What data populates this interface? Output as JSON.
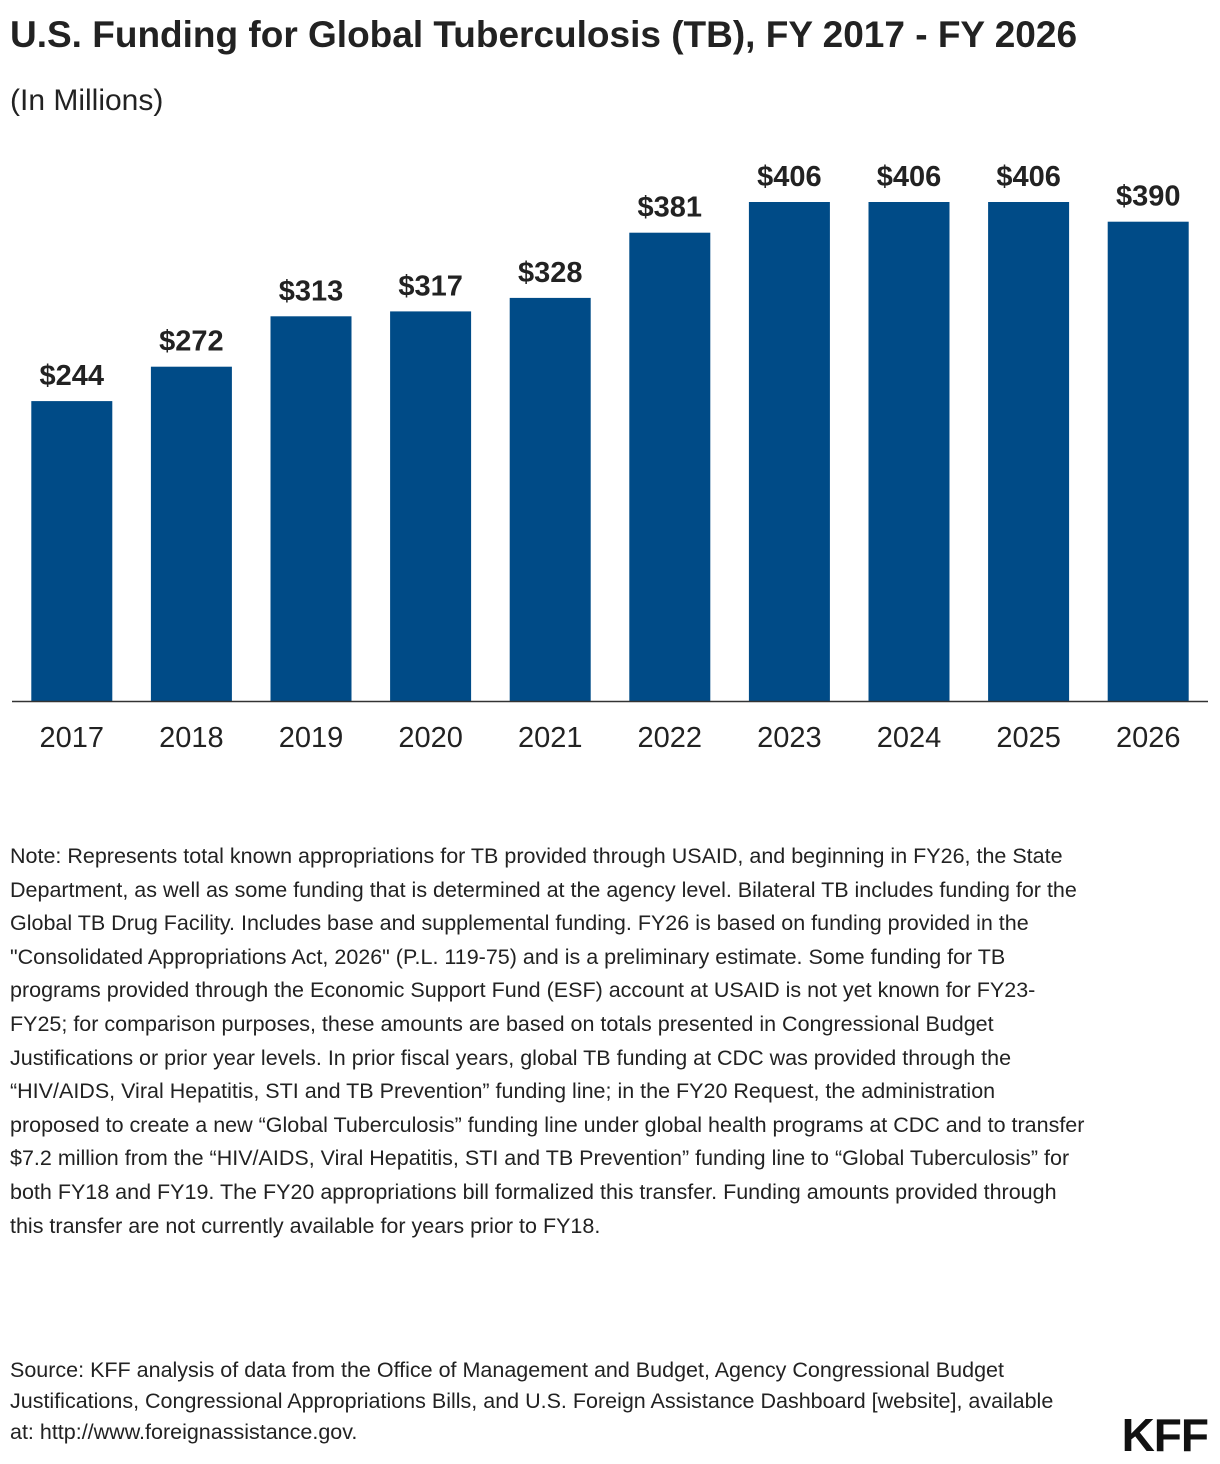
{
  "chart_data": {
    "type": "bar",
    "title": "U.S. Funding for Global Tuberculosis (TB), FY 2017 - FY 2026",
    "subtitle": "(In Millions)",
    "categories": [
      "2017",
      "2018",
      "2019",
      "2020",
      "2021",
      "2022",
      "2023",
      "2024",
      "2025",
      "2026"
    ],
    "values": [
      244,
      272,
      313,
      317,
      328,
      381,
      406,
      406,
      406,
      390
    ],
    "value_labels": [
      "$244",
      "$272",
      "$313",
      "$317",
      "$328",
      "$381",
      "$406",
      "$406",
      "$406",
      "$390"
    ],
    "ylim": [
      0,
      406
    ],
    "xlabel": "",
    "ylabel": "",
    "grid": false,
    "bar_color": "#004B87"
  },
  "note": "Note: Represents total known appropriations for TB provided through USAID, and beginning in FY26, the State Department, as well as some funding that is determined at the agency level. Bilateral TB includes funding for the Global TB Drug Facility. Includes base and supplemental funding. FY26 is based on funding provided in the \"Consolidated Appropriations Act, 2026\" (P.L. 119-75) and is a preliminary estimate. Some funding for TB programs provided through the Economic Support Fund (ESF) account at USAID is not yet known for FY23-FY25; for comparison purposes, these amounts are based on totals presented in Congressional Budget Justifications or prior year levels. In prior fiscal years, global TB funding at CDC was provided through the “HIV/AIDS, Viral Hepatitis, STI and TB Prevention” funding line; in the FY20 Request, the administration proposed to create a new “Global Tuberculosis” funding line under global health programs at CDC and to transfer $7.2 million from the “HIV/AIDS, Viral Hepatitis, STI and TB Prevention” funding line to “Global Tuberculosis” for both FY18 and FY19. The FY20 appropriations bill formalized this transfer. Funding amounts provided through this transfer are not currently available for years prior to FY18.",
  "source": "Source: KFF analysis of data from the Office of Management and Budget, Agency Congressional Budget Justifications, Congressional Appropriations Bills, and U.S. Foreign Assistance Dashboard [website], available at: http://www.foreignassistance.gov.",
  "logo": "KFF"
}
